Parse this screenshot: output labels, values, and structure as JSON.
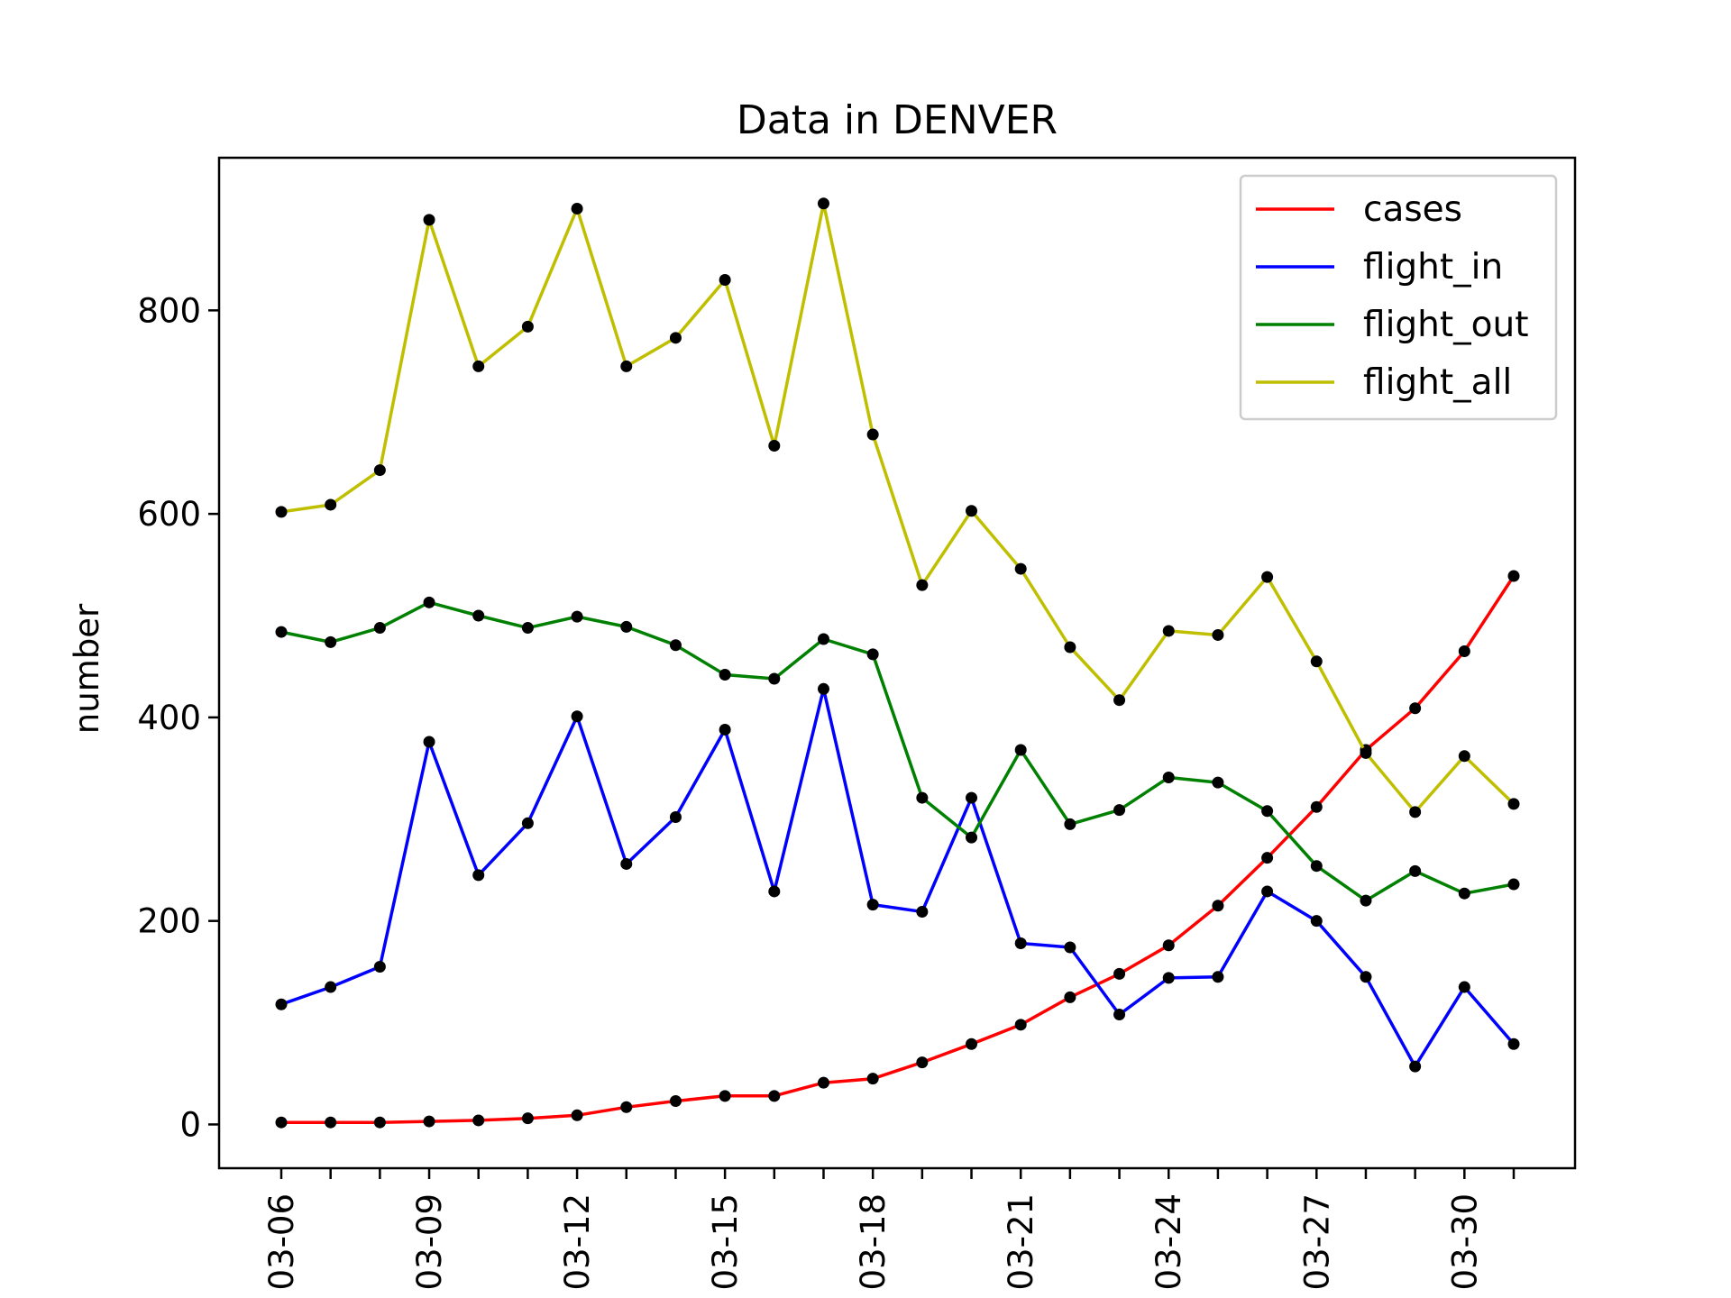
{
  "chart_data": {
    "type": "line",
    "title": "Data in DENVER",
    "xlabel": "",
    "ylabel": "number",
    "x": [
      "03-06",
      "03-07",
      "03-08",
      "03-09",
      "03-10",
      "03-11",
      "03-12",
      "03-13",
      "03-14",
      "03-15",
      "03-16",
      "03-17",
      "03-18",
      "03-19",
      "03-20",
      "03-21",
      "03-22",
      "03-23",
      "03-24",
      "03-25",
      "03-26",
      "03-27",
      "03-28",
      "03-29",
      "03-30",
      "03-31"
    ],
    "xticks": [
      "03-06",
      "03-09",
      "03-12",
      "03-15",
      "03-18",
      "03-21",
      "03-24",
      "03-27",
      "03-30"
    ],
    "ylim": [
      -43,
      950
    ],
    "yticks": [
      0,
      200,
      400,
      600,
      800
    ],
    "grid": false,
    "legend": "top-right",
    "marker_color": "#000000",
    "series": [
      {
        "name": "cases",
        "color": "#ff0000",
        "values": [
          2,
          2,
          2,
          3,
          4,
          6,
          9,
          17,
          23,
          28,
          28,
          41,
          45,
          61,
          79,
          98,
          125,
          148,
          176,
          215,
          262,
          312,
          368,
          409,
          465,
          539
        ]
      },
      {
        "name": "flight_in",
        "color": "#0000ff",
        "values": [
          118,
          135,
          155,
          376,
          245,
          296,
          401,
          256,
          302,
          388,
          229,
          428,
          216,
          209,
          321,
          178,
          174,
          108,
          144,
          145,
          229,
          200,
          145,
          57,
          135,
          79
        ]
      },
      {
        "name": "flight_out",
        "color": "#008000",
        "values": [
          484,
          474,
          488,
          513,
          500,
          488,
          499,
          489,
          471,
          442,
          438,
          477,
          462,
          321,
          282,
          368,
          295,
          309,
          341,
          336,
          308,
          254,
          220,
          249,
          227,
          236
        ]
      },
      {
        "name": "flight_all",
        "color": "#bfbf00",
        "values": [
          602,
          609,
          643,
          889,
          745,
          784,
          900,
          745,
          773,
          830,
          667,
          905,
          678,
          530,
          603,
          546,
          469,
          417,
          485,
          481,
          538,
          455,
          365,
          307,
          362,
          315
        ]
      }
    ]
  }
}
